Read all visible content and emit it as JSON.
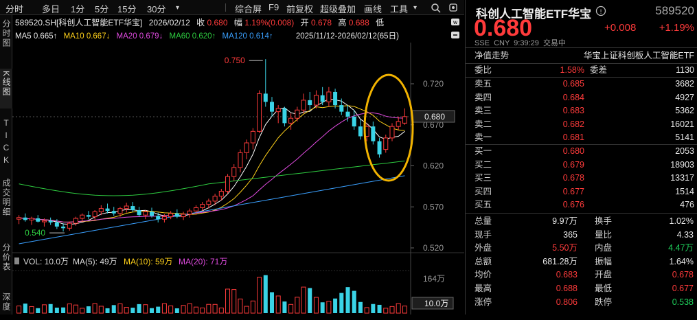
{
  "toolbar": {
    "left_items": [
      "分时",
      "多日",
      "1分",
      "5分",
      "15分",
      "30分"
    ],
    "right_items": [
      "综合屏",
      "F9",
      "前复权",
      "超级叠加",
      "画线",
      "工具"
    ]
  },
  "left_tabs": [
    "分时图",
    "K线图",
    "TICK",
    "成交明细",
    "分价表",
    "深度"
  ],
  "quote_line": {
    "code_name": "589520.SH[科创人工智能ETF华宝]",
    "date": "2026/02/12",
    "close_label": "收",
    "close": "0.680",
    "amp_label": "幅",
    "amp": "1.19%(0.008)",
    "open_label": "开",
    "open": "0.678",
    "high_label": "高",
    "high": "0.688",
    "low_label": "低"
  },
  "ma_line": {
    "ma5": "MA5 0.665↑",
    "ma10": "MA10 0.667↓",
    "ma20": "MA20 0.679↓",
    "ma60": "MA60 0.620↑",
    "ma120": "MA120 0.614↑",
    "range": "2025/11/12-2026/02/12(65日)"
  },
  "chart_data": {
    "type": "candlestick",
    "price_axis": [
      "0.720",
      "0.670",
      "0.620",
      "0.570",
      "0.520"
    ],
    "current_price_tag": "0.680",
    "high_marker": "0.750",
    "low_marker": "0.540",
    "volume_legend": {
      "vol": "VOL: 10.0万",
      "ma5": "MA(5): 49万",
      "ma10": "MA(10): 59万",
      "ma20": "MA(20): 71万"
    },
    "volume_axis_top": "164万",
    "volume_tag": "10.0万",
    "colors": {
      "up": "#ff3b3b",
      "down": "#3ad3e6",
      "ma5": "#ffffff",
      "ma10": "#ffd11a",
      "ma20": "#e04be0",
      "ma60": "#2ecc40",
      "ma120": "#3aa0ff",
      "highlight": "#f2b300"
    }
  },
  "right_panel": {
    "title": "科创人工智能ETF华宝",
    "code": "589520",
    "price": "0.680",
    "change": "+0.008",
    "change_pct": "+1.19%",
    "meta": [
      "SSE",
      "CNY",
      "9:39:29",
      "交易中"
    ],
    "net_label": "净值走势",
    "index_name": "华宝上证科创板人工智能ETF",
    "webi": {
      "label": "委比",
      "value": "1.58%",
      "diff_label": "委差",
      "diff": "1130"
    },
    "asks": [
      {
        "label": "卖五",
        "price": "0.685",
        "vol": "3682"
      },
      {
        "label": "卖四",
        "price": "0.684",
        "vol": "4927"
      },
      {
        "label": "卖三",
        "price": "0.683",
        "vol": "5362"
      },
      {
        "label": "卖二",
        "price": "0.682",
        "vol": "16021"
      },
      {
        "label": "卖一",
        "price": "0.681",
        "vol": "5141"
      }
    ],
    "bids": [
      {
        "label": "买一",
        "price": "0.680",
        "vol": "2053"
      },
      {
        "label": "买二",
        "price": "0.679",
        "vol": "18903"
      },
      {
        "label": "买三",
        "price": "0.678",
        "vol": "13317"
      },
      {
        "label": "买四",
        "price": "0.677",
        "vol": "1514"
      },
      {
        "label": "买五",
        "price": "0.676",
        "vol": "476"
      }
    ],
    "stats": [
      {
        "k1": "总量",
        "v1": "9.97万",
        "c1": "white",
        "k2": "换手",
        "v2": "1.02%",
        "c2": "white"
      },
      {
        "k1": "现手",
        "v1": "365",
        "c1": "white",
        "k2": "量比",
        "v2": "4.33",
        "c2": "white"
      },
      {
        "k1": "外盘",
        "v1": "5.50万",
        "c1": "red",
        "k2": "内盘",
        "v2": "4.47万",
        "c2": "green"
      },
      {
        "k1": "总额",
        "v1": "681.28万",
        "c1": "white",
        "k2": "振幅",
        "v2": "1.64%",
        "c2": "white"
      },
      {
        "k1": "均价",
        "v1": "0.683",
        "c1": "red",
        "k2": "开盘",
        "v2": "0.678",
        "c2": "red"
      },
      {
        "k1": "最高",
        "v1": "0.688",
        "c1": "red",
        "k2": "最低",
        "v2": "0.677",
        "c2": "red"
      },
      {
        "k1": "涨停",
        "v1": "0.806",
        "c1": "red",
        "k2": "跌停",
        "v2": "0.538",
        "c2": "green"
      }
    ]
  }
}
